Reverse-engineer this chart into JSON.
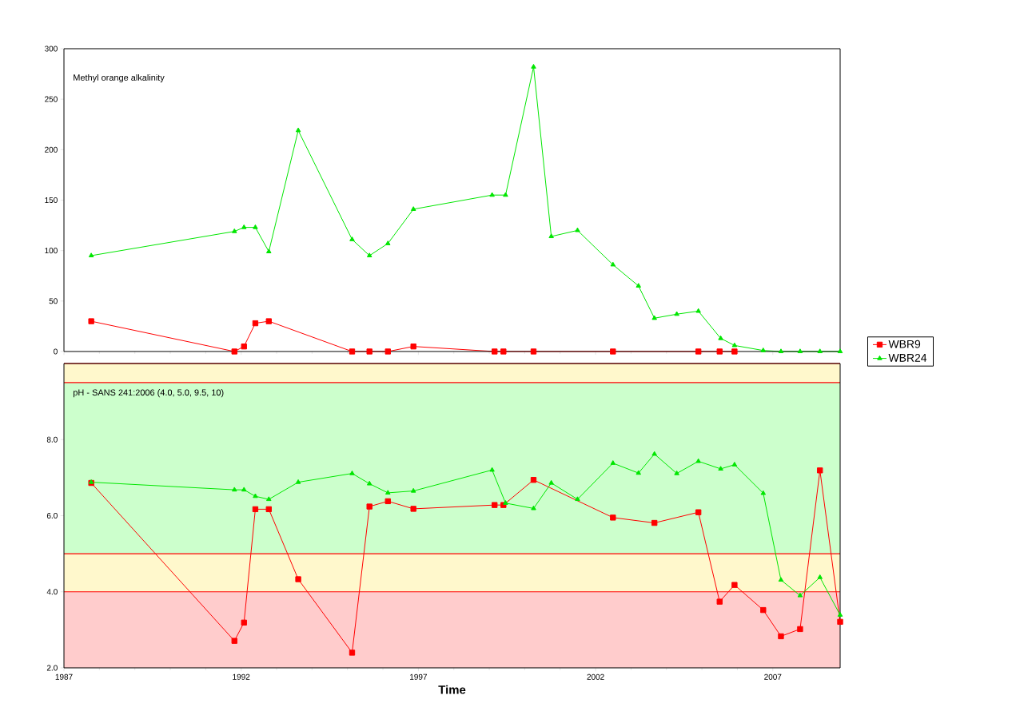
{
  "chart_data": [
    {
      "type": "line",
      "annotations": [
        "Methyl orange alkalinity"
      ],
      "ylim": [
        0,
        300
      ],
      "yticks": [
        0,
        50,
        100,
        150,
        200,
        250,
        300
      ],
      "xlim": [
        1987,
        2008.9
      ],
      "xticks": [
        1987,
        1992,
        1997,
        2002,
        2007
      ],
      "tick_labels": "y",
      "legend": "right",
      "series": [
        {
          "name": "WBR9",
          "color": "#ff0000",
          "marker": "square",
          "x": [
            1987.77,
            1991.81,
            1992.08,
            1992.4,
            1992.78,
            1995.13,
            1995.62,
            1996.14,
            1996.86,
            1999.15,
            1999.4,
            2000.25,
            2002.49,
            2004.9,
            2005.5,
            2005.92
          ],
          "values": [
            30,
            0,
            5,
            28,
            30,
            0,
            0,
            0,
            5,
            0,
            0,
            0,
            0,
            0,
            0,
            0
          ]
        },
        {
          "name": "WBR24",
          "color": "#00e600",
          "marker": "triangle",
          "x": [
            1987.77,
            1991.81,
            1992.08,
            1992.4,
            1992.78,
            1993.61,
            1995.13,
            1995.62,
            1996.14,
            1996.86,
            1999.08,
            1999.46,
            2000.25,
            2000.75,
            2001.49,
            2002.49,
            2003.21,
            2003.66,
            2004.29,
            2004.9,
            2005.53,
            2005.92,
            2006.73,
            2007.23,
            2007.77,
            2008.33,
            2008.9
          ],
          "values": [
            95,
            119,
            123,
            123,
            99,
            219,
            111,
            95,
            107,
            141,
            155,
            155,
            282,
            114,
            120,
            86,
            65,
            33,
            37,
            40,
            13,
            6,
            1,
            0,
            0,
            0,
            0
          ]
        }
      ]
    },
    {
      "type": "line",
      "annotations": [
        "pH - SANS 241:2006 (4.0, 5.0, 9.5, 10)"
      ],
      "xlabel": "Time",
      "ylim": [
        2,
        10
      ],
      "yticks": [
        {
          "value": 2,
          "label": "2.0"
        },
        {
          "value": 4,
          "label": "4.0"
        },
        {
          "value": 6,
          "label": "6.0"
        },
        {
          "value": 8,
          "label": "8.0"
        }
      ],
      "xlim": [
        1987,
        2008.9
      ],
      "xticks": [
        1987,
        1992,
        1997,
        2002,
        2007
      ],
      "bands": [
        {
          "axis": "y",
          "from": 2,
          "to": 4,
          "color": "#ffcccc"
        },
        {
          "axis": "y",
          "from": 4,
          "to": 5,
          "color": "#fff8cc"
        },
        {
          "axis": "y",
          "from": 5,
          "to": 9.5,
          "color": "#ccffcc"
        },
        {
          "axis": "y",
          "from": 9.5,
          "to": 10,
          "color": "#fff8cc"
        }
      ],
      "ref_lines": [
        {
          "axis": "y",
          "value": 4,
          "color": "#ff0000"
        },
        {
          "axis": "y",
          "value": 5,
          "color": "#ff0000"
        },
        {
          "axis": "y",
          "value": 9.5,
          "color": "#ff0000"
        },
        {
          "axis": "y",
          "value": 10,
          "color": "#ff0000"
        }
      ],
      "series": [
        {
          "color": "#ff0000",
          "marker": "square",
          "x": [
            1987.77,
            1991.81,
            1992.08,
            1992.4,
            1992.78,
            1993.61,
            1995.13,
            1995.62,
            1996.14,
            1996.86,
            1999.15,
            1999.4,
            2000.25,
            2002.49,
            2003.66,
            2004.9,
            2005.5,
            2005.92,
            2006.73,
            2007.23,
            2007.77,
            2008.33,
            2008.9
          ],
          "values": [
            6.86,
            2.71,
            3.19,
            6.17,
            6.17,
            4.33,
            2.4,
            6.24,
            6.38,
            6.18,
            6.28,
            6.28,
            6.94,
            5.95,
            5.81,
            6.09,
            3.74,
            4.18,
            3.52,
            2.83,
            3.02,
            7.19,
            3.21
          ]
        },
        {
          "color": "#00e600",
          "marker": "triangle",
          "x": [
            1987.77,
            1991.81,
            1992.08,
            1992.4,
            1992.78,
            1993.61,
            1995.13,
            1995.62,
            1996.14,
            1996.86,
            1999.08,
            1999.46,
            2000.25,
            2000.75,
            2001.49,
            2002.49,
            2003.21,
            2003.66,
            2004.29,
            2004.9,
            2005.53,
            2005.92,
            2006.73,
            2007.23,
            2007.77,
            2008.33,
            2008.9
          ],
          "values": [
            6.88,
            6.68,
            6.68,
            6.51,
            6.43,
            6.88,
            7.11,
            6.84,
            6.6,
            6.65,
            7.2,
            6.33,
            6.19,
            6.86,
            6.43,
            7.38,
            7.12,
            7.62,
            7.11,
            7.43,
            7.23,
            7.34,
            6.59,
            4.31,
            3.9,
            4.38,
            3.39
          ]
        }
      ]
    }
  ]
}
